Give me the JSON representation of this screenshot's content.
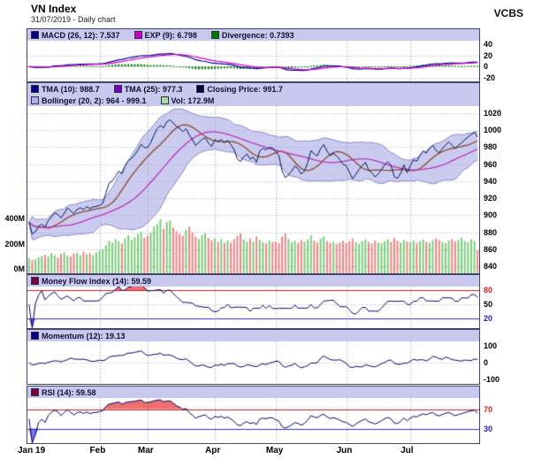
{
  "header": {
    "title": "VN Index",
    "subtitle": "31/07/2019 - Daily chart",
    "brand": "VCBS"
  },
  "panels": {
    "macd": {
      "legend": [
        {
          "label": "MACD (26, 12): 7.537",
          "color": "#000088"
        },
        {
          "label": "EXP (9): 6.798",
          "color": "#cc00cc"
        },
        {
          "label": "Divergence: 0.7393",
          "color": "#007700"
        }
      ],
      "range": [
        -27,
        47
      ],
      "ticks": [
        {
          "v": 40
        },
        {
          "v": 20
        },
        {
          "v": 0
        },
        {
          "v": -20
        }
      ]
    },
    "price": {
      "legend_row1": [
        {
          "label": "TMA (10): 988.7",
          "color": "#000088"
        },
        {
          "label": "TMA (25): 977.3",
          "color": "#7700bb"
        },
        {
          "label": "Closing Price: 991.7",
          "color": "#000044"
        }
      ],
      "legend_row2": [
        {
          "label": "Bollinger (20, 2): 964 - 999.1",
          "color": "#aab0ea"
        },
        {
          "label": "Vol: 172.9M",
          "color": "#a8dca8"
        }
      ],
      "range": [
        832,
        1028
      ],
      "ticks": [
        {
          "v": 1020
        },
        {
          "v": 1000
        },
        {
          "v": 980
        },
        {
          "v": 960
        },
        {
          "v": 940
        },
        {
          "v": 920
        },
        {
          "v": 900
        },
        {
          "v": 880
        },
        {
          "v": 860
        },
        {
          "v": 840
        }
      ]
    },
    "mfi": {
      "legend": [
        {
          "label": "Money Flow Index (14): 59.59",
          "color": "#770044"
        }
      ],
      "range": [
        0,
        88
      ],
      "ticks": [
        {
          "v": 80,
          "c": "#cc2222"
        },
        {
          "v": 50,
          "c": "#000000"
        },
        {
          "v": 20,
          "c": "#2222bb"
        }
      ]
    },
    "momentum": {
      "legend": [
        {
          "label": "Momentum (12): 19.13",
          "color": "#000088"
        }
      ],
      "range": [
        -125,
        125
      ],
      "ticks": [
        {
          "v": 100
        },
        {
          "v": 0
        },
        {
          "v": -100
        }
      ]
    },
    "rsi": {
      "legend": [
        {
          "label": "RSI (14): 59.58",
          "color": "#770044"
        }
      ],
      "range": [
        0,
        93
      ],
      "ticks": [
        {
          "v": 70,
          "c": "#cc2222"
        },
        {
          "v": 30,
          "c": "#2222bb"
        }
      ]
    }
  },
  "volume_axis": [
    {
      "label": "400M",
      "v": 400
    },
    {
      "label": "200M",
      "v": 200
    },
    {
      "label": "0M",
      "v": 0
    }
  ],
  "x_axis": [
    {
      "label": "Jan 19",
      "index": 0
    },
    {
      "label": "Feb",
      "index": 22
    },
    {
      "label": "Mar",
      "index": 37
    },
    {
      "label": "Apr",
      "index": 58
    },
    {
      "label": "May",
      "index": 77
    },
    {
      "label": "Jun",
      "index": 99
    },
    {
      "label": "Jul",
      "index": 119
    }
  ],
  "chart_data": {
    "type": "line",
    "title": "VN Index - Daily chart - 31/07/2019",
    "params": {
      "macd": [
        26,
        12,
        9
      ],
      "tma": [
        10,
        25
      ],
      "bollinger": [
        20,
        2
      ],
      "mfi": 14,
      "momentum": 12,
      "rsi": 14
    },
    "close": [
      891.8,
      878.2,
      880.9,
      887.1,
      889.6,
      886.3,
      893.5,
      898.3,
      902.7,
      901.1,
      896.8,
      902.4,
      908.7,
      905.4,
      902.0,
      906.8,
      908.9,
      906.5,
      910.2,
      908.0,
      909.9,
      910.4,
      911.5,
      913.9,
      926.0,
      937.5,
      940.5,
      945.2,
      951.9,
      948.6,
      958.3,
      964.2,
      966.7,
      971.0,
      976.5,
      983.2,
      979.6,
      979.4,
      985.3,
      994.0,
      1001.5,
      1005.4,
      1002.4,
      1009.7,
      1011.9,
      1008.4,
      1004.1,
      1002.0,
      998.2,
      1001.6,
      994.2,
      988.7,
      981.8,
      985.6,
      988.8,
      991.1,
      984.6,
      980.8,
      988.6,
      986.2,
      989.1,
      985.0,
      987.8,
      982.9,
      977.1,
      966.2,
      963.0,
      968.5,
      971.9,
      966.0,
      968.1,
      962.3,
      975.4,
      978.5,
      976.8,
      979.6,
      979.0,
      974.5,
      970.2,
      952.1,
      944.3,
      947.5,
      952.0,
      957.8,
      954.6,
      948.2,
      952.3,
      962.0,
      976.0,
      971.9,
      969.8,
      978.2,
      982.9,
      975.3,
      970.1,
      972.4,
      969.8,
      965.2,
      959.9,
      958.1,
      950.3,
      943.0,
      948.2,
      953.6,
      958.3,
      962.2,
      953.1,
      949.8,
      945.1,
      948.6,
      953.4,
      959.2,
      962.8,
      958.5,
      945.3,
      943.2,
      949.5,
      959.1,
      949.9,
      958.3,
      965.1,
      963.4,
      970.2,
      975.6,
      973.0,
      978.3,
      982.2,
      976.1,
      973.4,
      978.2,
      982.4,
      986.1,
      982.3,
      978.5,
      982.0,
      985.1,
      988.4,
      991.9,
      994.6,
      997.2,
      991.7
    ],
    "volume_m": [
      115,
      98,
      105,
      122,
      130,
      141,
      128,
      152,
      137,
      119,
      146,
      158,
      133,
      127,
      149,
      155,
      138,
      162,
      144,
      151,
      136,
      158,
      171,
      183,
      212,
      246,
      232,
      258,
      241,
      226,
      263,
      287,
      252,
      271,
      298,
      314,
      266,
      282,
      305,
      352,
      371,
      405,
      336,
      388,
      398,
      345,
      318,
      296,
      284,
      327,
      351,
      309,
      276,
      258,
      287,
      305,
      266,
      248,
      262,
      236,
      257,
      229,
      247,
      231,
      258,
      283,
      301,
      256,
      238,
      262,
      241,
      277,
      252,
      233,
      226,
      248,
      235,
      241,
      228,
      276,
      302,
      258,
      234,
      246,
      229,
      251,
      238,
      256,
      287,
      246,
      231,
      262,
      278,
      243,
      228,
      238,
      221,
      232,
      245,
      228,
      241,
      262,
      235,
      221,
      243,
      256,
      237,
      224,
      248,
      232,
      226,
      241,
      257,
      236,
      266,
      244,
      231,
      252,
      238,
      232,
      246,
      228,
      241,
      255,
      237,
      229,
      248,
      262,
      251,
      236,
      228,
      247,
      259,
      241,
      252,
      266,
      243,
      235,
      257,
      243,
      172.9
    ],
    "colors": {
      "close": "#001a55",
      "tma10": "#8b4a2f",
      "tma25": "#bb33bb",
      "band_fill": "rgba(160,160,225,0.55)",
      "band_edge": "#8888cc",
      "vol_up": "#7ccc7c",
      "vol_down": "#ee8484",
      "macd": "#000088",
      "exp": "#cc00cc",
      "hist": "#007700",
      "indicator": "#000066",
      "over": "rgba(230,50,50,0.7)",
      "under": "rgba(60,60,230,0.7)",
      "hline_red": "#bb2222",
      "hline_blue": "#3333bb"
    }
  }
}
